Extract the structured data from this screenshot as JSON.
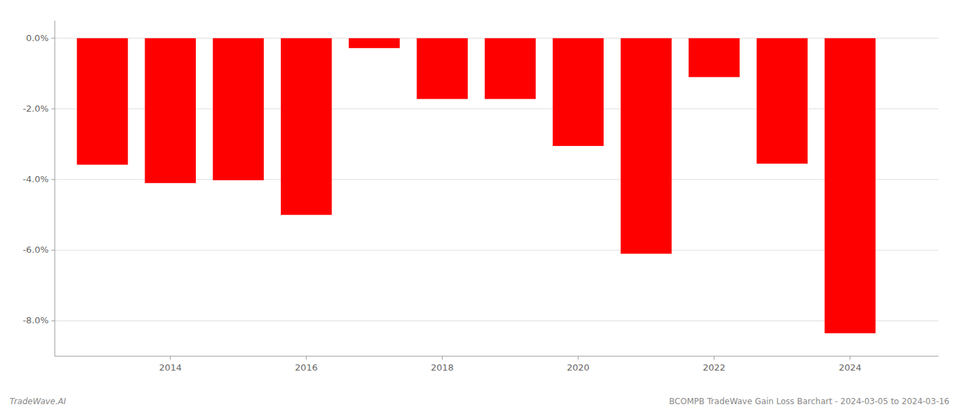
{
  "chart_data": {
    "type": "bar",
    "x": [
      2013,
      2014,
      2015,
      2016,
      2017,
      2018,
      2019,
      2020,
      2021,
      2022,
      2023,
      2024
    ],
    "values": [
      -3.58,
      -4.1,
      -4.02,
      -5.0,
      -0.28,
      -1.72,
      -1.72,
      -3.05,
      -6.1,
      -1.1,
      -3.55,
      -8.35
    ],
    "color": "#ff0000",
    "xlim": [
      2012.3,
      2025.3
    ],
    "xticks": [
      2014,
      2016,
      2018,
      2020,
      2022,
      2024
    ],
    "ylim": [
      -9.0,
      0.5
    ],
    "yticks": [
      {
        "value": -8,
        "label": "-8.0%"
      },
      {
        "value": -6,
        "label": "-6.0%"
      },
      {
        "value": -4,
        "label": "-4.0%"
      },
      {
        "value": -2,
        "label": "-2.0%"
      },
      {
        "value": 0,
        "label": "0.0%"
      }
    ],
    "grid": true,
    "annotations": [
      "TradeWave.AI",
      "BCOMPB TradeWave Gain Loss Barchart - 2024-03-05 to 2024-03-16"
    ]
  }
}
